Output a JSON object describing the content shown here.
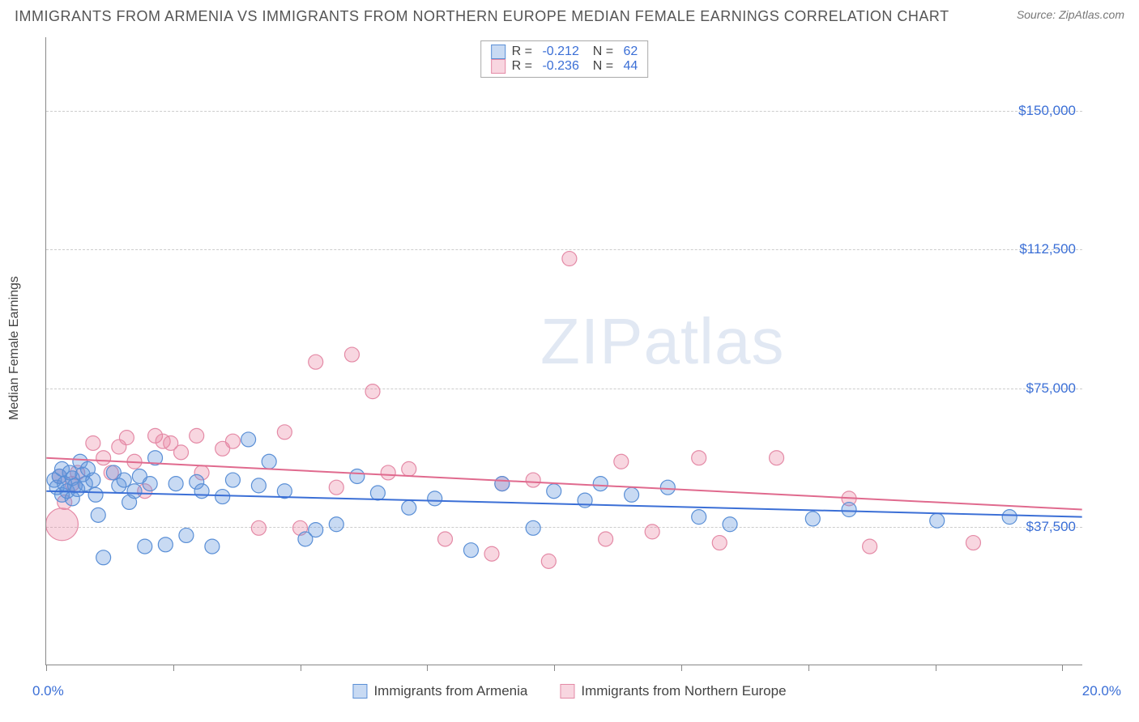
{
  "title": "IMMIGRANTS FROM ARMENIA VS IMMIGRANTS FROM NORTHERN EUROPE MEDIAN FEMALE EARNINGS CORRELATION CHART",
  "source_label": "Source: ZipAtlas.com",
  "watermark_text_1": "ZIP",
  "watermark_text_2": "atlas",
  "y_axis_label": "Median Female Earnings",
  "chart": {
    "type": "scatter",
    "xlim": [
      0,
      20
    ],
    "ylim": [
      0,
      170000
    ],
    "x_min_label": "0.0%",
    "x_max_label": "20.0%",
    "y_ticks": [
      37500,
      75000,
      112500,
      150000
    ],
    "y_tick_labels": [
      "$37,500",
      "$75,000",
      "$112,500",
      "$150,000"
    ],
    "x_tick_positions": [
      0,
      2.45,
      4.9,
      7.35,
      9.8,
      12.25,
      14.7,
      17.15,
      19.6
    ],
    "background_color": "#ffffff",
    "grid_color": "#cccccc",
    "axis_color": "#888888",
    "label_color": "#3b6fd6",
    "series": {
      "armenia": {
        "label": "Immigrants from Armenia",
        "fill": "rgba(96,150,220,0.35)",
        "stroke": "#5a8fd6",
        "marker_radius": 9,
        "R": "-0.212",
        "N": "62",
        "trend": {
          "y_at_x0": 47000,
          "y_at_xmax": 40000,
          "stroke": "#3b6fd6",
          "width": 2
        },
        "points": [
          [
            0.15,
            50000
          ],
          [
            0.2,
            48000
          ],
          [
            0.25,
            51000
          ],
          [
            0.3,
            46000
          ],
          [
            0.3,
            53000
          ],
          [
            0.35,
            49000
          ],
          [
            0.4,
            47000
          ],
          [
            0.45,
            52000
          ],
          [
            0.5,
            45000
          ],
          [
            0.5,
            50500
          ],
          [
            0.55,
            48500
          ],
          [
            0.6,
            47500
          ],
          [
            0.65,
            55000
          ],
          [
            0.7,
            51500
          ],
          [
            0.75,
            49000
          ],
          [
            0.8,
            53000
          ],
          [
            0.9,
            50000
          ],
          [
            0.95,
            46000
          ],
          [
            1.0,
            40500
          ],
          [
            1.1,
            29000
          ],
          [
            1.3,
            52000
          ],
          [
            1.4,
            48500
          ],
          [
            1.5,
            50000
          ],
          [
            1.6,
            44000
          ],
          [
            1.7,
            47000
          ],
          [
            1.8,
            51000
          ],
          [
            1.9,
            32000
          ],
          [
            2.0,
            49000
          ],
          [
            2.1,
            56000
          ],
          [
            2.3,
            32500
          ],
          [
            2.5,
            49000
          ],
          [
            2.7,
            35000
          ],
          [
            2.9,
            49500
          ],
          [
            3.0,
            47000
          ],
          [
            3.2,
            32000
          ],
          [
            3.4,
            45500
          ],
          [
            3.6,
            50000
          ],
          [
            3.9,
            61000
          ],
          [
            4.1,
            48500
          ],
          [
            4.3,
            55000
          ],
          [
            4.6,
            47000
          ],
          [
            5.0,
            34000
          ],
          [
            5.2,
            36500
          ],
          [
            5.6,
            38000
          ],
          [
            6.0,
            51000
          ],
          [
            6.4,
            46500
          ],
          [
            7.0,
            42500
          ],
          [
            7.5,
            45000
          ],
          [
            8.2,
            31000
          ],
          [
            8.8,
            49000
          ],
          [
            9.4,
            37000
          ],
          [
            9.8,
            47000
          ],
          [
            10.4,
            44500
          ],
          [
            10.7,
            49000
          ],
          [
            11.3,
            46000
          ],
          [
            12.0,
            48000
          ],
          [
            12.6,
            40000
          ],
          [
            13.2,
            38000
          ],
          [
            14.8,
            39500
          ],
          [
            15.5,
            42000
          ],
          [
            17.2,
            39000
          ],
          [
            18.6,
            40000
          ]
        ]
      },
      "neurope": {
        "label": "Immigrants from Northern Europe",
        "fill": "rgba(235,130,160,0.33)",
        "stroke": "#e48aa6",
        "marker_radius": 9,
        "R": "-0.236",
        "N": "44",
        "trend": {
          "y_at_x0": 56000,
          "y_at_xmax": 42000,
          "stroke": "#e06a8e",
          "width": 2
        },
        "points": [
          [
            0.25,
            51000
          ],
          [
            0.3,
            38000,
            20
          ],
          [
            0.35,
            44000
          ],
          [
            0.5,
            49000
          ],
          [
            0.6,
            52000
          ],
          [
            0.9,
            60000
          ],
          [
            1.1,
            56000
          ],
          [
            1.25,
            52000
          ],
          [
            1.4,
            59000
          ],
          [
            1.55,
            61500
          ],
          [
            1.7,
            55000
          ],
          [
            1.9,
            47000
          ],
          [
            2.1,
            62000
          ],
          [
            2.25,
            60500
          ],
          [
            2.4,
            60000
          ],
          [
            2.6,
            57500
          ],
          [
            2.9,
            62000
          ],
          [
            3.0,
            52000
          ],
          [
            3.4,
            58500
          ],
          [
            3.6,
            60500
          ],
          [
            4.1,
            37000
          ],
          [
            4.6,
            63000
          ],
          [
            4.9,
            37000
          ],
          [
            5.2,
            82000
          ],
          [
            5.6,
            48000
          ],
          [
            5.9,
            84000
          ],
          [
            6.3,
            74000
          ],
          [
            6.6,
            52000
          ],
          [
            7.0,
            53000
          ],
          [
            7.7,
            34000
          ],
          [
            8.6,
            30000
          ],
          [
            8.8,
            49000
          ],
          [
            9.4,
            50000
          ],
          [
            9.7,
            28000
          ],
          [
            10.1,
            110000
          ],
          [
            10.8,
            34000
          ],
          [
            11.1,
            55000
          ],
          [
            11.7,
            36000
          ],
          [
            12.6,
            56000
          ],
          [
            13.0,
            33000
          ],
          [
            14.1,
            56000
          ],
          [
            15.5,
            45000
          ],
          [
            15.9,
            32000
          ],
          [
            17.9,
            33000
          ]
        ]
      }
    }
  }
}
